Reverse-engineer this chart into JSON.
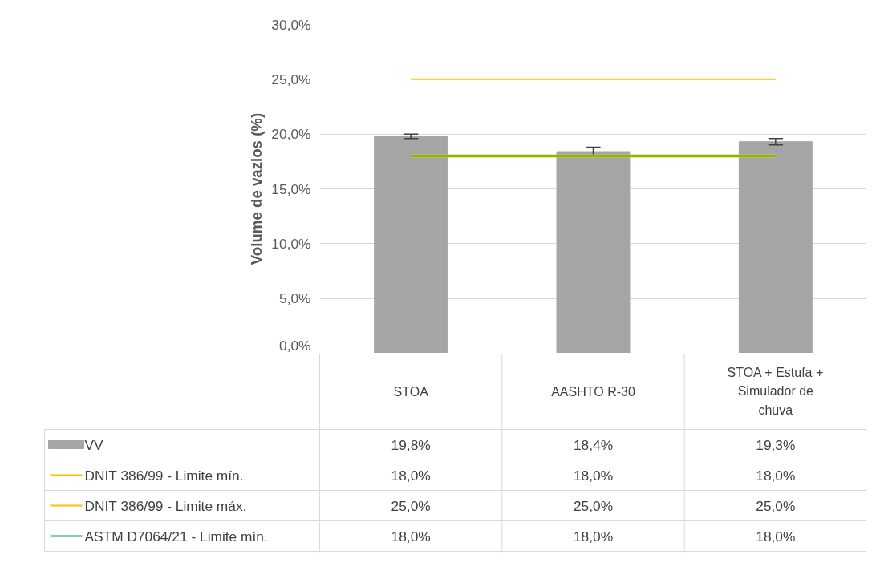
{
  "chart_data": {
    "type": "bar",
    "ylabel": "Volume de vazios (%)",
    "categories": [
      "STOA",
      "AASHTO R-30",
      "STOA + Estufa + Simulador de chuva"
    ],
    "series": [
      {
        "name": "VV",
        "color": "#a5a5a5",
        "values": [
          19.8,
          18.4,
          19.3
        ],
        "errors": [
          0.2,
          0.4,
          0.3
        ],
        "value_labels": [
          "19,8%",
          "18,4%",
          "19,3%"
        ]
      },
      {
        "name": "DNIT 386/99 - Limite mín.",
        "type": "line",
        "color": "#ffc000",
        "values": [
          18.0,
          18.0,
          18.0
        ],
        "value_labels": [
          "18,0%",
          "18,0%",
          "18,0%"
        ]
      },
      {
        "name": "DNIT 386/99 - Limite máx.",
        "type": "line",
        "color": "#ffc000",
        "values": [
          25.0,
          25.0,
          25.0
        ],
        "value_labels": [
          "25,0%",
          "25,0%",
          "25,0%"
        ]
      },
      {
        "name": "ASTM D7064/21 - Limite mín.",
        "type": "line",
        "color": "#00b050",
        "values": [
          18.0,
          18.0,
          18.0
        ],
        "value_labels": [
          "18,0%",
          "18,0%",
          "18,0%"
        ]
      }
    ],
    "ylim": [
      0,
      30
    ],
    "yticks": [
      {
        "value": 0,
        "label": "0,0%"
      },
      {
        "value": 5,
        "label": "5,0%"
      },
      {
        "value": 10,
        "label": "10,0%"
      },
      {
        "value": 15,
        "label": "15,0%"
      },
      {
        "value": 20,
        "label": "20,0%"
      },
      {
        "value": 25,
        "label": "25,0%"
      },
      {
        "value": 30,
        "label": "30,0%"
      }
    ],
    "grid": "y",
    "legend": "bottom"
  }
}
